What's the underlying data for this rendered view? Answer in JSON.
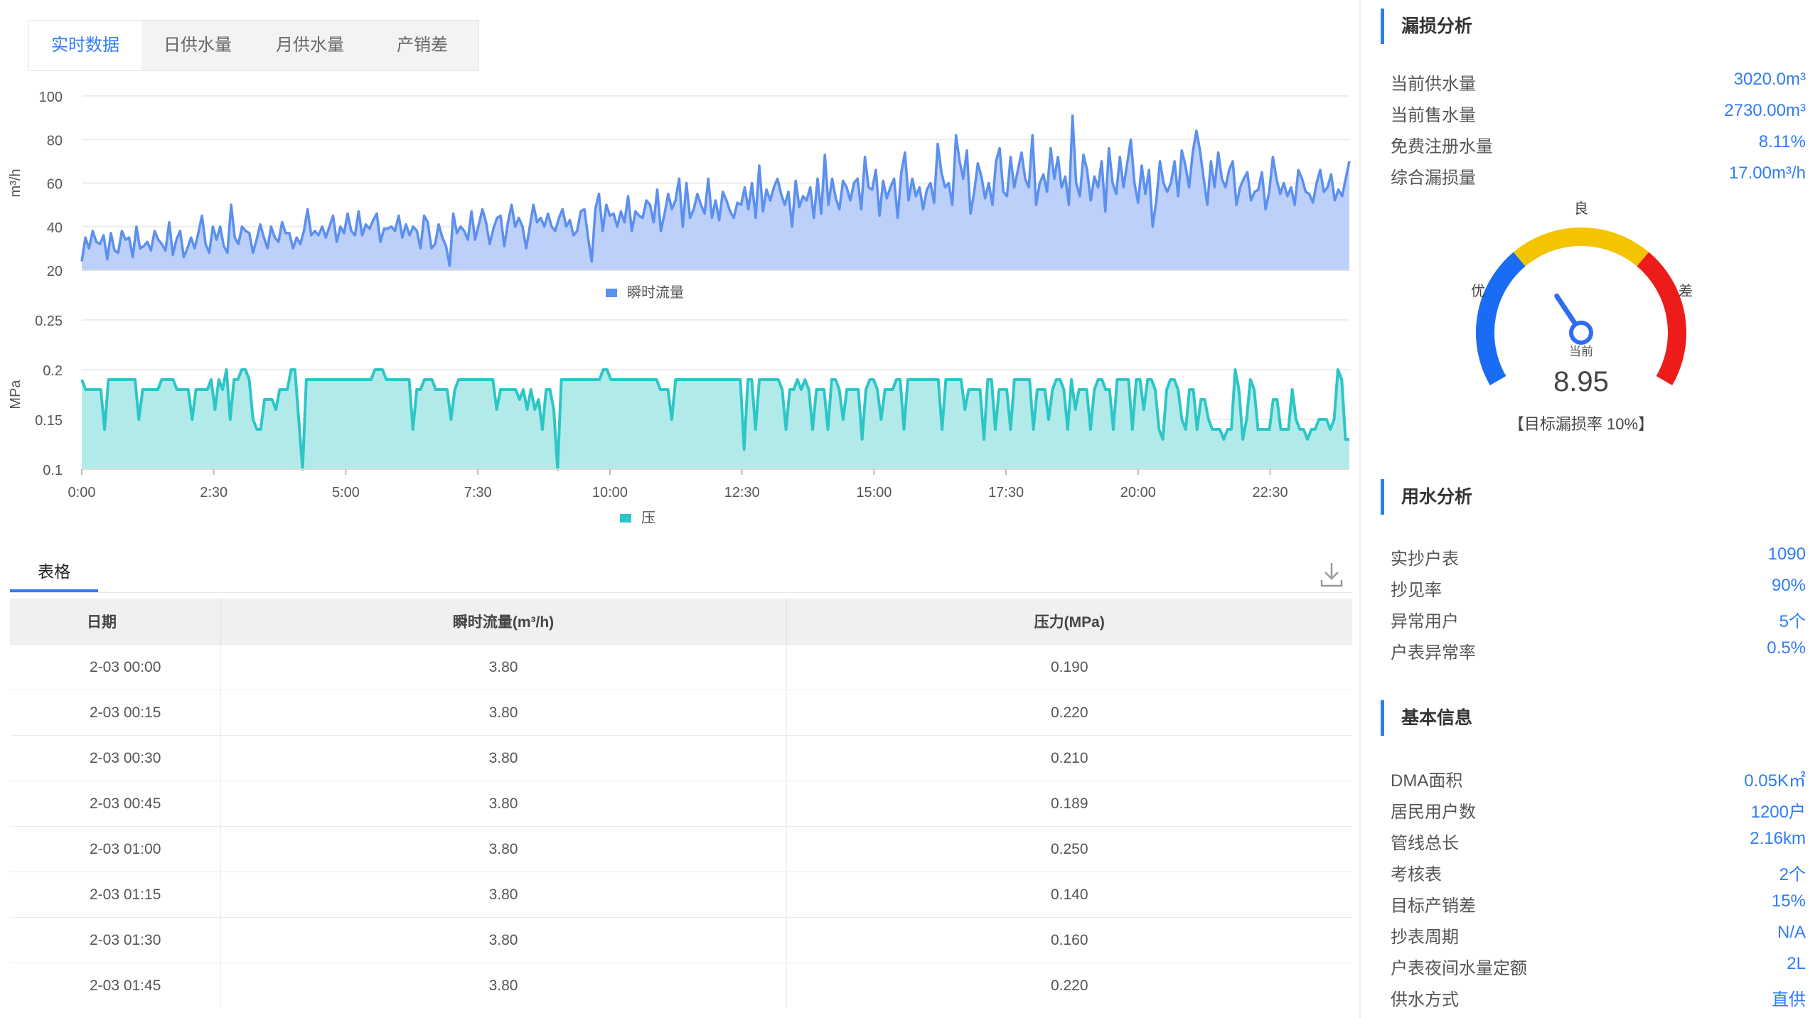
{
  "tabs": [
    "实时数据",
    "日供水量",
    "月供水量",
    "产销差"
  ],
  "active_tab": 0,
  "chart_data": [
    {
      "type": "area",
      "ylabel": "m³/h",
      "ylim": [
        20,
        100
      ],
      "yticks": [
        "100",
        "80",
        "60",
        "40",
        "20"
      ],
      "xticks": [
        "0:00",
        "2:30",
        "5:00",
        "7:30",
        "10:00",
        "12:30",
        "15:00",
        "17:30",
        "20:00",
        "22:30"
      ],
      "legend": "瞬时流量",
      "color": "#5b8ff0",
      "fill": "#bcd0fa",
      "series": [
        {
          "values": [
            24,
            35,
            30,
            38,
            33,
            32,
            36,
            25,
            37,
            29,
            28,
            38,
            34,
            35,
            26,
            40,
            30,
            31,
            33,
            29,
            38,
            34,
            32,
            29,
            42,
            27,
            34,
            38,
            26,
            30,
            35,
            30,
            37,
            45,
            32,
            28,
            40,
            34,
            40,
            31,
            28,
            50,
            35,
            32,
            40,
            38,
            37,
            28,
            34,
            41,
            35,
            30,
            40,
            35,
            33,
            42,
            37,
            37,
            30,
            35,
            32,
            38,
            48,
            36,
            38,
            36,
            40,
            35,
            40,
            45,
            33,
            40,
            37,
            46,
            38,
            36,
            47,
            36,
            41,
            39,
            43,
            46,
            33,
            39,
            39,
            40,
            38,
            45,
            35,
            41,
            36,
            40,
            38,
            30,
            45,
            42,
            30,
            32,
            41,
            35,
            31,
            22,
            46,
            37,
            40,
            38,
            34,
            47,
            34,
            41,
            48,
            42,
            32,
            39,
            44,
            45,
            31,
            42,
            50,
            40,
            44,
            40,
            30,
            40,
            50,
            42,
            44,
            40,
            46,
            40,
            38,
            44,
            48,
            40,
            43,
            36,
            38,
            47,
            48,
            35,
            24,
            48,
            55,
            38,
            50,
            45,
            46,
            40,
            47,
            42,
            54,
            38,
            47,
            45,
            44,
            52,
            50,
            42,
            57,
            38,
            46,
            55,
            48,
            52,
            62,
            40,
            60,
            44,
            48,
            55,
            50,
            46,
            62,
            44,
            52,
            43,
            56,
            52,
            47,
            44,
            51,
            50,
            58,
            48,
            60,
            44,
            68,
            47,
            57,
            52,
            58,
            62,
            55,
            50,
            56,
            40,
            61,
            49,
            54,
            52,
            58,
            44,
            62,
            46,
            73,
            50,
            62,
            53,
            48,
            61,
            58,
            52,
            60,
            62,
            48,
            72,
            58,
            57,
            66,
            45,
            61,
            53,
            58,
            62,
            44,
            65,
            74,
            52,
            62,
            54,
            58,
            48,
            57,
            60,
            51,
            78,
            65,
            58,
            60,
            50,
            82,
            70,
            62,
            75,
            46,
            56,
            69,
            63,
            53,
            60,
            50,
            70,
            76,
            56,
            54,
            72,
            58,
            66,
            74,
            62,
            58,
            82,
            50,
            60,
            64,
            56,
            76,
            62,
            72,
            58,
            63,
            50,
            91,
            60,
            54,
            73,
            66,
            52,
            63,
            58,
            70,
            47,
            76,
            60,
            55,
            72,
            58,
            69,
            80,
            60,
            51,
            68,
            55,
            66,
            40,
            52,
            70,
            60,
            56,
            60,
            70,
            54,
            75,
            68,
            58,
            74,
            84,
            75,
            62,
            50,
            70,
            58,
            74,
            62,
            58,
            66,
            70,
            50,
            58,
            62,
            65,
            52,
            56,
            57,
            65,
            48,
            56,
            72,
            62,
            55,
            60,
            54,
            58,
            50,
            66,
            62,
            56,
            55,
            51,
            60,
            66,
            56,
            58,
            64,
            52,
            57,
            54,
            62,
            70
          ]
        }
      ]
    },
    {
      "type": "area",
      "ylabel": "MPa",
      "ylim": [
        0.1,
        0.25
      ],
      "yticks": [
        "0.25",
        "0.2",
        "0.15",
        "0.1"
      ],
      "xticks": [
        "0:00",
        "2:30",
        "5:00",
        "7:30",
        "10:00",
        "12:30",
        "15:00",
        "17:30",
        "20:00",
        "22:30"
      ],
      "legend": "压",
      "color": "#2dc6c6",
      "fill": "#b2eaea",
      "series": [
        {
          "values": [
            0.19,
            0.18,
            0.18,
            0.18,
            0.18,
            0.18,
            0.14,
            0.19,
            0.19,
            0.19,
            0.19,
            0.19,
            0.19,
            0.19,
            0.19,
            0.15,
            0.18,
            0.18,
            0.18,
            0.18,
            0.18,
            0.19,
            0.19,
            0.19,
            0.19,
            0.18,
            0.18,
            0.18,
            0.18,
            0.15,
            0.18,
            0.18,
            0.18,
            0.18,
            0.19,
            0.16,
            0.19,
            0.18,
            0.2,
            0.15,
            0.19,
            0.19,
            0.2,
            0.2,
            0.19,
            0.15,
            0.14,
            0.14,
            0.17,
            0.17,
            0.17,
            0.16,
            0.18,
            0.18,
            0.18,
            0.2,
            0.2,
            0.15,
            0.1,
            0.19,
            0.19,
            0.19,
            0.19,
            0.19,
            0.19,
            0.19,
            0.19,
            0.19,
            0.19,
            0.19,
            0.19,
            0.19,
            0.19,
            0.19,
            0.19,
            0.19,
            0.19,
            0.2,
            0.2,
            0.2,
            0.19,
            0.19,
            0.19,
            0.19,
            0.19,
            0.19,
            0.19,
            0.14,
            0.18,
            0.18,
            0.19,
            0.19,
            0.19,
            0.18,
            0.18,
            0.18,
            0.18,
            0.15,
            0.18,
            0.19,
            0.19,
            0.19,
            0.19,
            0.19,
            0.19,
            0.19,
            0.19,
            0.19,
            0.19,
            0.16,
            0.18,
            0.18,
            0.18,
            0.18,
            0.18,
            0.17,
            0.18,
            0.16,
            0.18,
            0.16,
            0.17,
            0.14,
            0.18,
            0.18,
            0.16,
            0.1,
            0.19,
            0.19,
            0.19,
            0.19,
            0.19,
            0.19,
            0.19,
            0.19,
            0.19,
            0.19,
            0.19,
            0.2,
            0.2,
            0.19,
            0.19,
            0.19,
            0.19,
            0.19,
            0.19,
            0.19,
            0.19,
            0.19,
            0.19,
            0.19,
            0.19,
            0.19,
            0.18,
            0.18,
            0.18,
            0.15,
            0.19,
            0.19,
            0.19,
            0.19,
            0.19,
            0.19,
            0.19,
            0.19,
            0.19,
            0.19,
            0.19,
            0.19,
            0.19,
            0.19,
            0.19,
            0.19,
            0.19,
            0.19,
            0.12,
            0.19,
            0.19,
            0.14,
            0.19,
            0.19,
            0.19,
            0.19,
            0.19,
            0.19,
            0.18,
            0.14,
            0.18,
            0.18,
            0.19,
            0.18,
            0.19,
            0.18,
            0.14,
            0.18,
            0.18,
            0.18,
            0.14,
            0.19,
            0.19,
            0.18,
            0.15,
            0.18,
            0.18,
            0.18,
            0.18,
            0.13,
            0.18,
            0.19,
            0.19,
            0.18,
            0.15,
            0.18,
            0.18,
            0.18,
            0.19,
            0.19,
            0.14,
            0.19,
            0.19,
            0.19,
            0.19,
            0.19,
            0.19,
            0.19,
            0.19,
            0.19,
            0.14,
            0.19,
            0.19,
            0.19,
            0.19,
            0.19,
            0.16,
            0.18,
            0.18,
            0.18,
            0.18,
            0.13,
            0.19,
            0.19,
            0.14,
            0.18,
            0.18,
            0.18,
            0.14,
            0.19,
            0.19,
            0.19,
            0.19,
            0.19,
            0.14,
            0.18,
            0.18,
            0.18,
            0.15,
            0.18,
            0.19,
            0.19,
            0.18,
            0.14,
            0.19,
            0.16,
            0.18,
            0.18,
            0.18,
            0.14,
            0.18,
            0.19,
            0.19,
            0.18,
            0.18,
            0.14,
            0.19,
            0.19,
            0.19,
            0.19,
            0.14,
            0.19,
            0.19,
            0.16,
            0.19,
            0.19,
            0.18,
            0.14,
            0.13,
            0.18,
            0.19,
            0.19,
            0.18,
            0.15,
            0.14,
            0.18,
            0.18,
            0.14,
            0.17,
            0.17,
            0.15,
            0.14,
            0.14,
            0.14,
            0.13,
            0.14,
            0.14,
            0.2,
            0.18,
            0.13,
            0.15,
            0.19,
            0.18,
            0.14,
            0.14,
            0.14,
            0.14,
            0.17,
            0.17,
            0.14,
            0.14,
            0.14,
            0.18,
            0.15,
            0.14,
            0.14,
            0.13,
            0.14,
            0.14,
            0.15,
            0.15,
            0.15,
            0.14,
            0.15,
            0.2,
            0.19,
            0.13,
            0.13
          ]
        }
      ]
    }
  ],
  "table": {
    "tab_label": "表格",
    "headers": [
      "日期",
      "瞬时流量(m³/h)",
      "压力(MPa)"
    ],
    "rows": [
      [
        "2-03 00:00",
        "3.80",
        "0.190"
      ],
      [
        "2-03 00:15",
        "3.80",
        "0.220"
      ],
      [
        "2-03 00:30",
        "3.80",
        "0.210"
      ],
      [
        "2-03 00:45",
        "3.80",
        "0.189"
      ],
      [
        "2-03 01:00",
        "3.80",
        "0.250"
      ],
      [
        "2-03 01:15",
        "3.80",
        "0.140"
      ],
      [
        "2-03 01:30",
        "3.80",
        "0.160"
      ],
      [
        "2-03 01:45",
        "3.80",
        "0.220"
      ]
    ]
  },
  "leak": {
    "title": "漏损分析",
    "items": [
      {
        "k": "当前供水量",
        "v": "3020.0m³"
      },
      {
        "k": "当前售水量",
        "v": "2730.00m³"
      },
      {
        "k": "免费注册水量",
        "v": "8.11%"
      },
      {
        "k": "综合漏损量",
        "v": "17.00m³/h"
      }
    ],
    "gauge": {
      "label_good": "良",
      "label_excellent": "优",
      "label_poor": "差",
      "current_label": "当前",
      "value": "8.95",
      "target": "【目标漏损率 10%】",
      "level": 0.36,
      "colors": [
        "#1a6cf4",
        "#f5c400",
        "#ee1b1b"
      ]
    }
  },
  "usage": {
    "title": "用水分析",
    "items": [
      {
        "k": "实抄户表",
        "v": "1090"
      },
      {
        "k": "抄见率",
        "v": "90%"
      },
      {
        "k": "异常用户",
        "v": "5个"
      },
      {
        "k": "户表异常率",
        "v": "0.5%"
      }
    ]
  },
  "basic": {
    "title": "基本信息",
    "items": [
      {
        "k": "DMA面积",
        "v": "0.05K㎡"
      },
      {
        "k": "居民用户数",
        "v": "1200户"
      },
      {
        "k": "管线总长",
        "v": "2.16km"
      },
      {
        "k": "考核表",
        "v": "2个"
      },
      {
        "k": "目标产销差",
        "v": "15%"
      },
      {
        "k": "抄表周期",
        "v": "N/A"
      },
      {
        "k": "户表夜间水量定额",
        "v": "2L"
      },
      {
        "k": "供水方式",
        "v": "直供"
      }
    ]
  }
}
